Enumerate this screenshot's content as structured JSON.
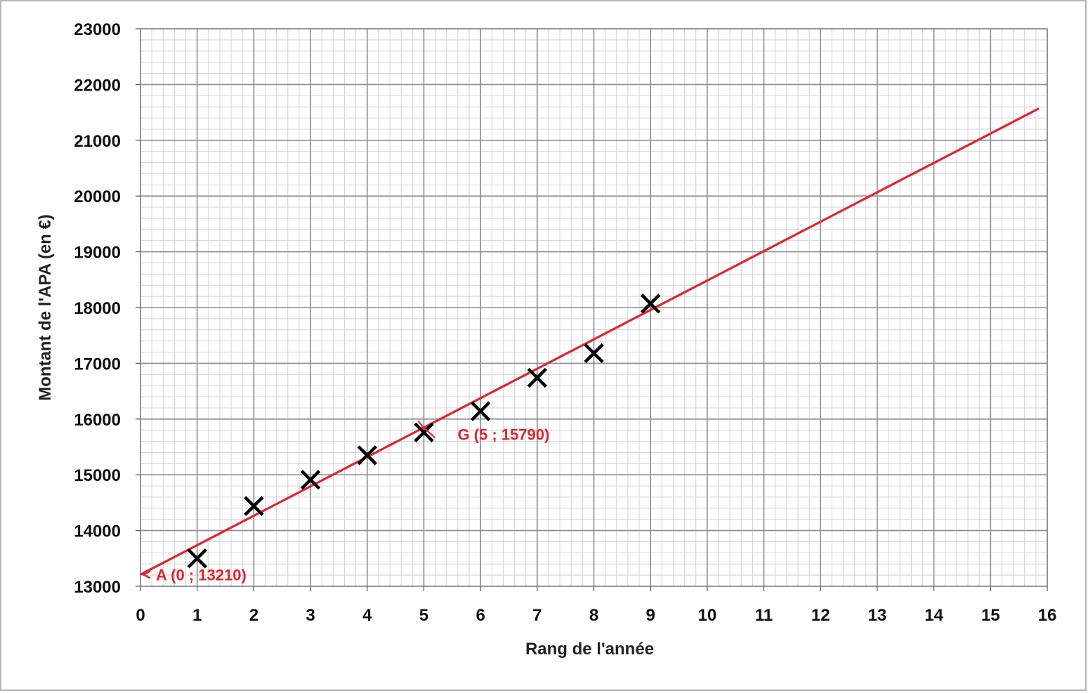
{
  "chart_data": {
    "type": "scatter",
    "title": "",
    "xlabel": "Rang de l'année",
    "ylabel": "Montant de l'APA (en €)",
    "xlim": [
      0,
      16
    ],
    "ylim": [
      13000,
      23000
    ],
    "x_ticks": [
      "0",
      "1",
      "2",
      "3",
      "4",
      "5",
      "6",
      "7",
      "8",
      "9",
      "10",
      "11",
      "12",
      "13",
      "14",
      "15",
      "16"
    ],
    "y_ticks": [
      "13000",
      "14000",
      "15000",
      "16000",
      "17000",
      "18000",
      "19000",
      "20000",
      "21000",
      "22000",
      "23000"
    ],
    "grid": true,
    "legend": "none",
    "series": [
      {
        "marker": "x",
        "color": "#000000",
        "points": [
          {
            "x": 1,
            "y": 13500
          },
          {
            "x": 2,
            "y": 14440
          },
          {
            "x": 3,
            "y": 14910
          },
          {
            "x": 4,
            "y": 15350
          },
          {
            "x": 5,
            "y": 15760
          },
          {
            "x": 6,
            "y": 16140
          },
          {
            "x": 7,
            "y": 16740
          },
          {
            "x": 8,
            "y": 17180
          },
          {
            "x": 9,
            "y": 18070
          }
        ]
      }
    ],
    "fit_line": {
      "color": "#e0242e",
      "from": {
        "x": 0,
        "y": 13210
      },
      "to": {
        "x": 15.85,
        "y": 21570
      }
    },
    "annotations": [
      {
        "text": "A (0 ; 13210)",
        "x": 0,
        "y": 13210,
        "color": "#e0242e"
      },
      {
        "text": "G (5 ; 15790)",
        "x": 5,
        "y": 15790,
        "color": "#e0242e"
      }
    ]
  }
}
